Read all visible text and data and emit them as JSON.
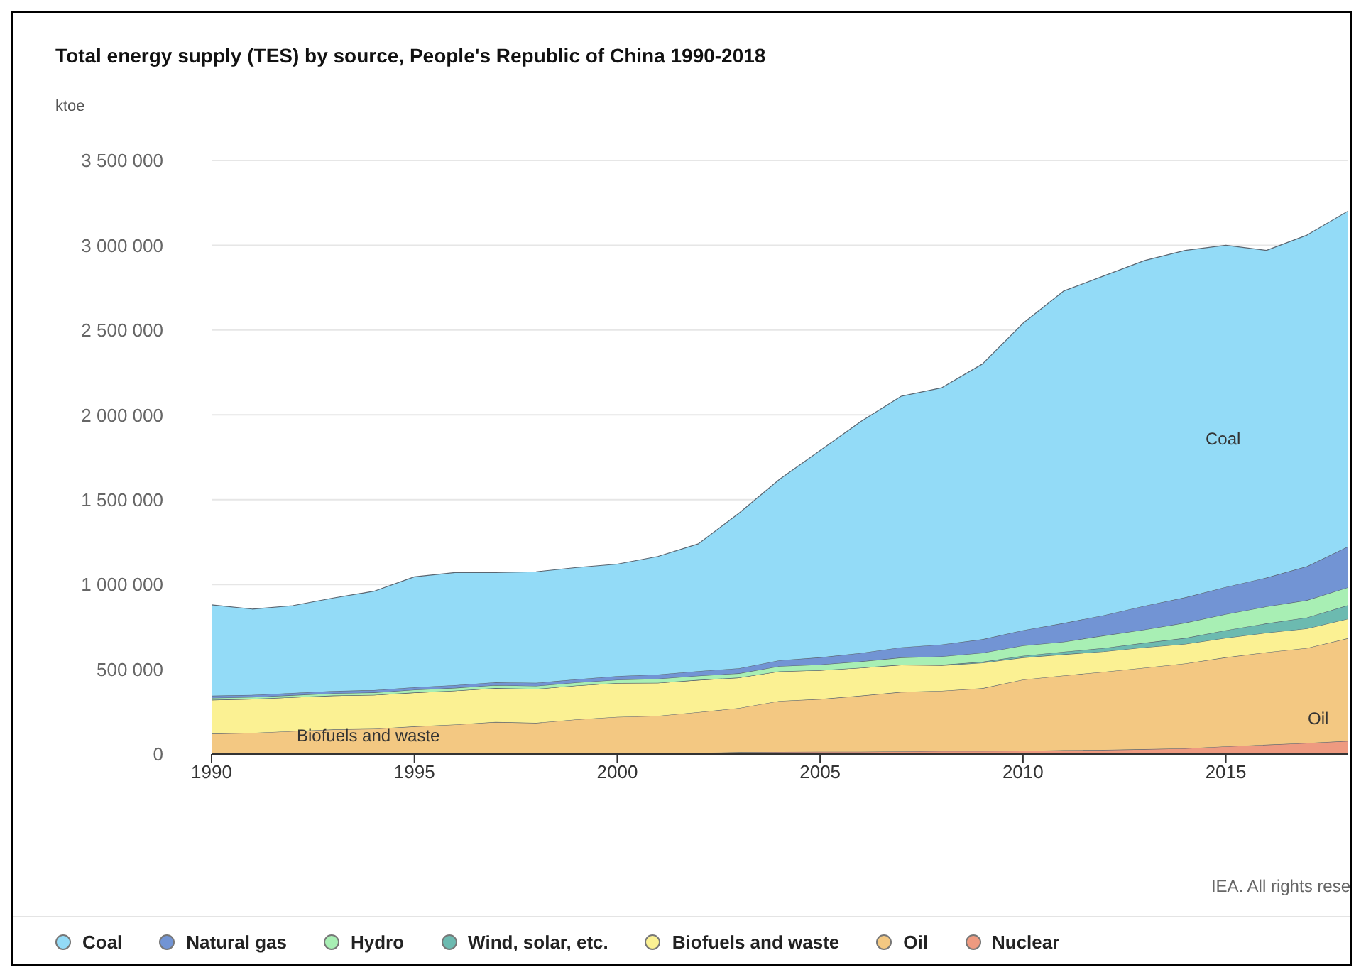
{
  "chart_data": {
    "type": "area",
    "stacked": true,
    "title": "Total energy supply (TES) by source, People's Republic of China 1990-2018",
    "ylabel": "ktoe",
    "x": [
      1990,
      1991,
      1992,
      1993,
      1994,
      1995,
      1996,
      1997,
      1998,
      1999,
      2000,
      2001,
      2002,
      2003,
      2004,
      2005,
      2006,
      2007,
      2008,
      2009,
      2010,
      2011,
      2012,
      2013,
      2014,
      2015,
      2016,
      2017,
      2018
    ],
    "xlim": [
      1990,
      2018
    ],
    "xticks": [
      1990,
      1995,
      2000,
      2005,
      2010,
      2015
    ],
    "ylim": [
      0,
      3500000
    ],
    "yticks": [
      0,
      {
        "value": 500000,
        "label": "500 000"
      },
      {
        "value": 1000000,
        "label": "1 000 000"
      },
      {
        "value": 1500000,
        "label": "1 500 000"
      },
      {
        "value": 2000000,
        "label": "2 000 000"
      },
      {
        "value": 2500000,
        "label": "2 500 000"
      },
      {
        "value": 3000000,
        "label": "3 000 000"
      },
      {
        "value": 3500000,
        "label": "3 500 000"
      }
    ],
    "grid": "y",
    "legend": "bottom",
    "series": [
      {
        "name": "Nuclear",
        "color": "#ee9a80",
        "values": [
          0,
          0,
          0,
          0,
          4000,
          3000,
          4000,
          4000,
          4000,
          4000,
          4000,
          5000,
          7000,
          11000,
          13000,
          14000,
          14000,
          16000,
          18000,
          18000,
          19000,
          23000,
          25000,
          29000,
          34000,
          45000,
          55000,
          65000,
          77000
        ]
      },
      {
        "name": "Oil",
        "color": "#f3c882",
        "values": [
          120000,
          125000,
          135000,
          145000,
          145000,
          160000,
          170000,
          185000,
          180000,
          200000,
          215000,
          220000,
          240000,
          260000,
          300000,
          310000,
          330000,
          350000,
          355000,
          370000,
          420000,
          440000,
          460000,
          480000,
          500000,
          525000,
          545000,
          560000,
          605000
        ]
      },
      {
        "name": "Biofuels and waste",
        "color": "#fbf193",
        "values": [
          200000,
          200000,
          200000,
          200000,
          200000,
          200000,
          200000,
          200000,
          200000,
          200000,
          200000,
          195000,
          190000,
          180000,
          175000,
          170000,
          165000,
          160000,
          150000,
          150000,
          130000,
          125000,
          120000,
          120000,
          115000,
          115000,
          115000,
          115000,
          115000
        ]
      },
      {
        "name": "Wind, solar, etc.",
        "color": "#6cbab0",
        "values": [
          0,
          0,
          0,
          0,
          0,
          0,
          0,
          0,
          0,
          0,
          0,
          0,
          0,
          0,
          0,
          0,
          0,
          1000,
          3000,
          6000,
          10000,
          15000,
          20000,
          27000,
          35000,
          45000,
          55000,
          65000,
          80000
        ]
      },
      {
        "name": "Hydro",
        "color": "#a8efb4",
        "values": [
          11000,
          11000,
          12000,
          13000,
          14000,
          16000,
          16000,
          17000,
          18000,
          18000,
          19000,
          24000,
          25000,
          25000,
          30000,
          34000,
          37000,
          42000,
          50000,
          53000,
          61000,
          59000,
          74000,
          78000,
          90000,
          95000,
          100000,
          102000,
          105000
        ]
      },
      {
        "name": "Natural gas",
        "color": "#7294d4",
        "values": [
          13000,
          13000,
          13000,
          14000,
          14000,
          15000,
          16000,
          17000,
          18000,
          19000,
          22000,
          25000,
          27000,
          30000,
          35000,
          42000,
          50000,
          60000,
          70000,
          80000,
          90000,
          110000,
          120000,
          140000,
          150000,
          160000,
          170000,
          200000,
          240000
        ]
      },
      {
        "name": "Coal",
        "color": "#93dbf7",
        "values": [
          536000,
          506000,
          515000,
          548000,
          583000,
          651000,
          664000,
          647000,
          655000,
          659000,
          660000,
          696000,
          751000,
          914000,
          1067000,
          1220000,
          1364000,
          1481000,
          1514000,
          1623000,
          1810000,
          1958000,
          2001000,
          2036000,
          2046000,
          2015000,
          1930000,
          1953000,
          1978000
        ]
      }
    ],
    "annotations": [
      "Coal",
      "Oil",
      "Biofuels and waste",
      "IEA. All rights rese"
    ]
  }
}
